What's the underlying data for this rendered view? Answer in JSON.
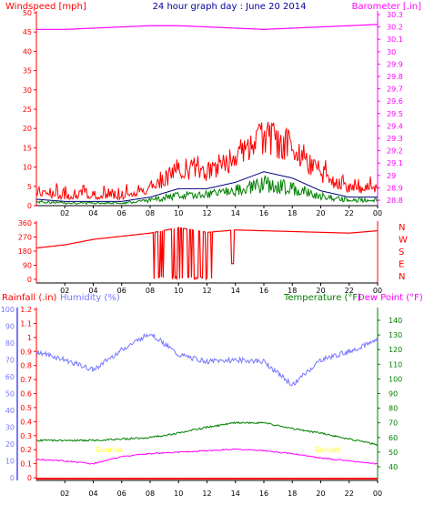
{
  "header": {
    "title": "24 hour graph day : June 20 2014",
    "wind_label": "Windspeed [mph]",
    "baro_label": "Barometer [.in]"
  },
  "panel1": {
    "wind_ticks": [
      "0",
      "5",
      "10",
      "15",
      "20",
      "25",
      "30",
      "35",
      "40",
      "45",
      "50"
    ],
    "baro_ticks": [
      "28.8",
      "28.9",
      "29",
      "29.1",
      "29.2",
      "29.3",
      "29.4",
      "29.5",
      "29.6",
      "29.7",
      "29.8",
      "29.9",
      "30",
      "30.1",
      "30.2",
      "30.3"
    ],
    "time_ticks": [
      "02",
      "04",
      "06",
      "08",
      "10",
      "12",
      "14",
      "16",
      "18",
      "20",
      "22",
      "00"
    ]
  },
  "panel2": {
    "dir_ticks": [
      "0",
      "90",
      "180",
      "270",
      "360"
    ],
    "compass": [
      "N",
      "W",
      "S",
      "E",
      "N"
    ],
    "time_ticks": [
      "02",
      "04",
      "06",
      "08",
      "10",
      "12",
      "14",
      "16",
      "18",
      "20",
      "22",
      "00"
    ]
  },
  "panel3": {
    "rain_label": "Rainfall (.in)",
    "hum_label": "Humidity (%)",
    "temp_label": "Temperature (°F)",
    "dew_label": "Dew Point (°F)",
    "hum_ticks": [
      "0",
      "10",
      "20",
      "30",
      "40",
      "50",
      "60",
      "70",
      "80",
      "90",
      "100"
    ],
    "rain_ticks": [
      "0",
      "0.1",
      "0.2",
      "0.3",
      "0.4",
      "0.5",
      "0.6",
      "0.7",
      "0.8",
      "0.9",
      "1",
      "1.1",
      "1.2"
    ],
    "temp_ticks": [
      "40",
      "50",
      "60",
      "70",
      "80",
      "90",
      "100",
      "110",
      "120",
      "130",
      "140"
    ],
    "annot_sunrise": "Sunrise",
    "annot_sunset": "Sunset",
    "time_ticks": [
      "02",
      "04",
      "06",
      "08",
      "10",
      "12",
      "14",
      "16",
      "18",
      "20",
      "22",
      "00"
    ]
  },
  "colors": {
    "wind_gust": "#ff0000",
    "wind_avg": "#008000",
    "wind_line": "#000080",
    "barometer": "#ff00ff",
    "direction": "#ff0000",
    "humidity": "#7777ff",
    "temperature": "#008000",
    "dewpoint": "#ff00ff",
    "rain": "#ff0000",
    "title": "#000099",
    "annot": "#ffff00"
  },
  "chart_data": [
    {
      "type": "line",
      "title": "24 hour graph day : June 20 2014",
      "xlabel": "",
      "ylabel": "Windspeed [mph]",
      "x": [
        "00",
        "02",
        "04",
        "06",
        "08",
        "10",
        "12",
        "14",
        "16",
        "18",
        "20",
        "22",
        "00"
      ],
      "ylim": [
        0,
        50
      ],
      "series": [
        {
          "name": "Windspeed [mph]",
          "values": [
            3,
            2,
            2,
            2,
            4,
            8,
            8,
            11,
            16,
            13,
            7,
            4,
            4
          ]
        },
        {
          "name": "Barometer [.in]",
          "values": [
            30.18,
            30.18,
            30.19,
            30.2,
            30.21,
            30.21,
            30.2,
            30.19,
            30.18,
            30.19,
            30.2,
            30.21,
            30.22
          ]
        }
      ],
      "y2lim": [
        28.8,
        30.3
      ]
    },
    {
      "type": "line",
      "title": "",
      "ylabel": "",
      "x": [
        "00",
        "02",
        "04",
        "06",
        "08",
        "10",
        "12",
        "14",
        "16",
        "18",
        "20",
        "22",
        "00"
      ],
      "ylim": [
        0,
        360
      ],
      "series": [
        {
          "name": "",
          "values": [
            200,
            220,
            255,
            275,
            295,
            330,
            300,
            315,
            310,
            305,
            300,
            295,
            310
          ]
        }
      ]
    },
    {
      "type": "line",
      "title": "",
      "x": [
        "00",
        "02",
        "04",
        "06",
        "08",
        "10",
        "12",
        "14",
        "16",
        "18",
        "20",
        "22",
        "00"
      ],
      "series": [
        {
          "name": "Humidity (%)",
          "values": [
            75,
            70,
            64,
            76,
            86,
            73,
            69,
            70,
            69,
            55,
            70,
            75,
            82
          ]
        },
        {
          "name": "Temperature (°F)",
          "values": [
            58,
            58,
            58,
            59,
            60,
            63,
            67,
            70,
            70,
            66,
            63,
            59,
            55
          ]
        },
        {
          "name": "Dew Point (°F)",
          "values": [
            45,
            44,
            42,
            47,
            49,
            50,
            51,
            52,
            51,
            49,
            46,
            44,
            42
          ]
        },
        {
          "name": "Rainfall (.in)",
          "values": [
            0,
            0,
            0,
            0,
            0,
            0,
            0,
            0,
            0,
            0,
            0,
            0,
            0
          ]
        }
      ],
      "ylim": [
        0,
        100
      ],
      "y2lim": [
        30,
        145
      ],
      "rain_lim": [
        0,
        1.2
      ]
    }
  ]
}
